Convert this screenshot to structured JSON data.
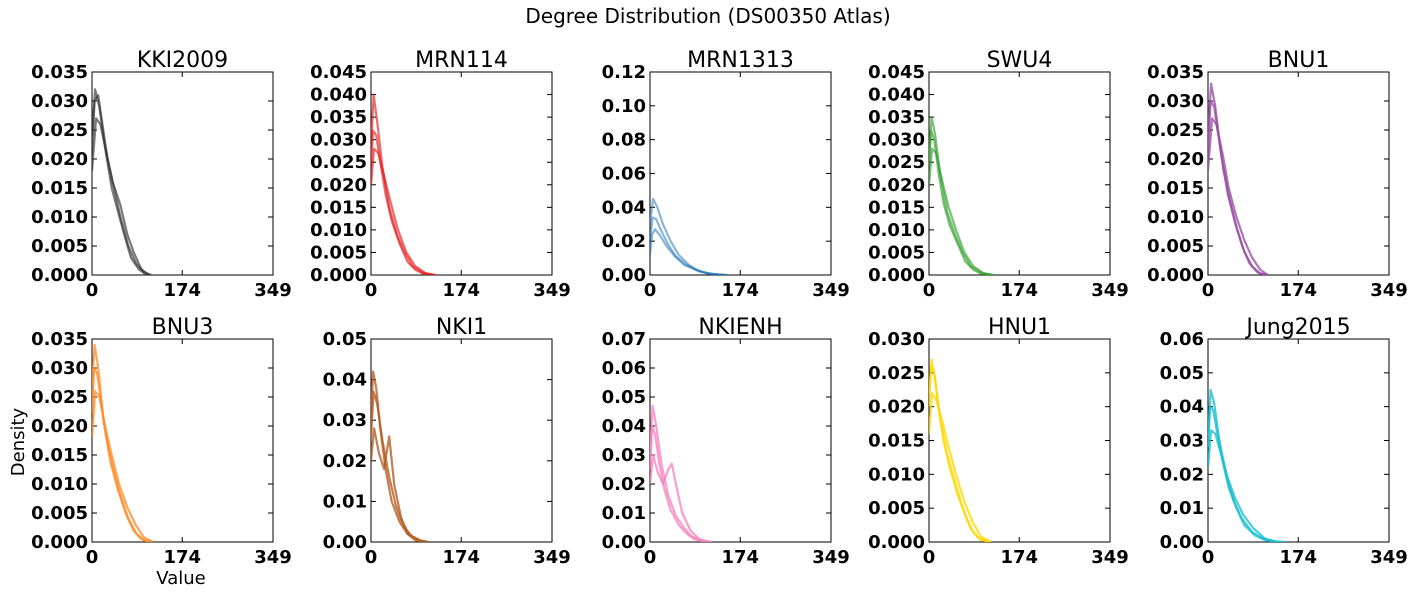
{
  "figure": {
    "title": "Degree Distribution (DS00350 Atlas)",
    "xlabel": "Value",
    "ylabel": "Density"
  },
  "chart_data": [
    {
      "type": "line",
      "title": "KKI2009",
      "color": "#333333",
      "opacity": 0.25,
      "xlim": [
        0,
        349
      ],
      "xticks": [
        "0",
        "174",
        "349"
      ],
      "ylim": [
        0,
        0.035
      ],
      "yticks": [
        "0.000",
        "0.005",
        "0.010",
        "0.015",
        "0.020",
        "0.025",
        "0.030",
        "0.035"
      ],
      "series": [
        {
          "x": [
            0,
            5,
            12,
            20,
            30,
            40,
            55,
            70,
            85,
            100,
            115
          ],
          "y": [
            0.021,
            0.03,
            0.031,
            0.026,
            0.02,
            0.016,
            0.01,
            0.005,
            0.002,
            0.0005,
            0
          ]
        },
        {
          "x": [
            0,
            6,
            14,
            25,
            38,
            50,
            62,
            75,
            90,
            105
          ],
          "y": [
            0.024,
            0.032,
            0.029,
            0.022,
            0.015,
            0.011,
            0.007,
            0.003,
            0.001,
            0
          ]
        },
        {
          "x": [
            0,
            8,
            16,
            28,
            40,
            55,
            68,
            80,
            95,
            110
          ],
          "y": [
            0.018,
            0.027,
            0.026,
            0.021,
            0.016,
            0.012,
            0.007,
            0.004,
            0.001,
            0
          ]
        }
      ]
    },
    {
      "type": "line",
      "title": "MRN114",
      "color": "#e41a1c",
      "opacity": 0.25,
      "xlim": [
        0,
        349
      ],
      "xticks": [
        "0",
        "174",
        "349"
      ],
      "ylim": [
        0,
        0.045
      ],
      "yticks": [
        "0.000",
        "0.005",
        "0.010",
        "0.015",
        "0.020",
        "0.025",
        "0.030",
        "0.035",
        "0.040",
        "0.045"
      ],
      "series": [
        {
          "x": [
            0,
            4,
            10,
            18,
            28,
            40,
            55,
            70,
            85,
            100,
            120
          ],
          "y": [
            0.024,
            0.032,
            0.031,
            0.025,
            0.018,
            0.012,
            0.007,
            0.003,
            0.0012,
            0.0003,
            0
          ]
        },
        {
          "x": [
            0,
            5,
            12,
            22,
            35,
            50,
            65,
            80,
            100,
            120
          ],
          "y": [
            0.028,
            0.04,
            0.034,
            0.024,
            0.015,
            0.009,
            0.005,
            0.002,
            0.0005,
            0
          ]
        },
        {
          "x": [
            0,
            6,
            14,
            25,
            38,
            52,
            68,
            85,
            105,
            125
          ],
          "y": [
            0.02,
            0.028,
            0.027,
            0.022,
            0.016,
            0.01,
            0.005,
            0.002,
            0.0004,
            0
          ]
        }
      ]
    },
    {
      "type": "line",
      "title": "MRN1313",
      "color": "#1f6fb4",
      "opacity": 0.2,
      "xlim": [
        0,
        349
      ],
      "xticks": [
        "0",
        "174",
        "349"
      ],
      "ylim": [
        0,
        0.12
      ],
      "yticks": [
        "0.00",
        "0.02",
        "0.04",
        "0.06",
        "0.08",
        "0.10",
        "0.12"
      ],
      "series": [
        {
          "x": [
            0,
            5,
            12,
            22,
            35,
            50,
            70,
            90,
            110,
            130,
            150
          ],
          "y": [
            0.02,
            0.034,
            0.033,
            0.026,
            0.018,
            0.011,
            0.006,
            0.003,
            0.001,
            0.0003,
            0
          ]
        },
        {
          "x": [
            0,
            6,
            14,
            25,
            40,
            55,
            75,
            95,
            120,
            145
          ],
          "y": [
            0.03,
            0.045,
            0.04,
            0.03,
            0.02,
            0.012,
            0.006,
            0.002,
            0.0006,
            0
          ]
        },
        {
          "x": [
            0,
            4,
            10,
            20,
            32,
            48,
            66,
            88,
            112,
            140
          ],
          "y": [
            0.012,
            0.024,
            0.027,
            0.023,
            0.017,
            0.011,
            0.006,
            0.003,
            0.001,
            0
          ]
        }
      ]
    },
    {
      "type": "line",
      "title": "SWU4",
      "color": "#33a02c",
      "opacity": 0.25,
      "xlim": [
        0,
        349
      ],
      "xticks": [
        "0",
        "174",
        "349"
      ],
      "ylim": [
        0,
        0.045
      ],
      "yticks": [
        "0.000",
        "0.005",
        "0.010",
        "0.015",
        "0.020",
        "0.025",
        "0.030",
        "0.035",
        "0.040",
        "0.045"
      ],
      "series": [
        {
          "x": [
            0,
            4,
            10,
            18,
            28,
            40,
            55,
            70,
            85,
            100,
            120
          ],
          "y": [
            0.024,
            0.032,
            0.03,
            0.023,
            0.016,
            0.011,
            0.007,
            0.003,
            0.0012,
            0.0003,
            0
          ]
        },
        {
          "x": [
            0,
            5,
            12,
            22,
            35,
            50,
            65,
            80,
            100,
            120
          ],
          "y": [
            0.026,
            0.035,
            0.031,
            0.022,
            0.014,
            0.009,
            0.005,
            0.002,
            0.0005,
            0
          ]
        },
        {
          "x": [
            0,
            6,
            14,
            25,
            38,
            52,
            68,
            85,
            105,
            125
          ],
          "y": [
            0.02,
            0.028,
            0.027,
            0.021,
            0.015,
            0.01,
            0.005,
            0.002,
            0.0004,
            0
          ]
        }
      ]
    },
    {
      "type": "line",
      "title": "BNU1",
      "color": "#984ea3",
      "opacity": 0.3,
      "xlim": [
        0,
        349
      ],
      "xticks": [
        "0",
        "174",
        "349"
      ],
      "ylim": [
        0,
        0.035
      ],
      "yticks": [
        "0.000",
        "0.005",
        "0.010",
        "0.015",
        "0.020",
        "0.025",
        "0.030",
        "0.035"
      ],
      "series": [
        {
          "x": [
            0,
            5,
            12,
            20,
            30,
            42,
            56,
            70,
            85,
            100,
            115
          ],
          "y": [
            0.021,
            0.03,
            0.029,
            0.024,
            0.018,
            0.013,
            0.008,
            0.004,
            0.0015,
            0.0003,
            0
          ]
        },
        {
          "x": [
            0,
            6,
            14,
            25,
            38,
            52,
            66,
            80,
            95,
            110
          ],
          "y": [
            0.024,
            0.033,
            0.029,
            0.021,
            0.014,
            0.009,
            0.005,
            0.002,
            0.0005,
            0
          ]
        },
        {
          "x": [
            0,
            8,
            16,
            28,
            40,
            55,
            70,
            85,
            100,
            115
          ],
          "y": [
            0.018,
            0.027,
            0.026,
            0.021,
            0.015,
            0.01,
            0.006,
            0.003,
            0.001,
            0
          ]
        }
      ]
    },
    {
      "type": "line",
      "title": "BNU3",
      "color": "#ff8c2a",
      "opacity": 0.3,
      "xlim": [
        0,
        349
      ],
      "xticks": [
        "0",
        "174",
        "349"
      ],
      "ylim": [
        0,
        0.035
      ],
      "yticks": [
        "0.000",
        "0.005",
        "0.010",
        "0.015",
        "0.020",
        "0.025",
        "0.030",
        "0.035"
      ],
      "series": [
        {
          "x": [
            0,
            4,
            10,
            18,
            28,
            40,
            55,
            70,
            85,
            100,
            115
          ],
          "y": [
            0.022,
            0.03,
            0.029,
            0.024,
            0.018,
            0.013,
            0.008,
            0.004,
            0.0015,
            0.0003,
            0
          ]
        },
        {
          "x": [
            0,
            5,
            12,
            22,
            35,
            50,
            65,
            80,
            95,
            110
          ],
          "y": [
            0.027,
            0.034,
            0.03,
            0.021,
            0.014,
            0.009,
            0.005,
            0.002,
            0.0005,
            0
          ]
        },
        {
          "x": [
            0,
            6,
            14,
            25,
            38,
            52,
            68,
            84,
            100,
            118
          ],
          "y": [
            0.018,
            0.026,
            0.025,
            0.02,
            0.015,
            0.01,
            0.006,
            0.003,
            0.0008,
            0
          ]
        }
      ]
    },
    {
      "type": "line",
      "title": "NKI1",
      "color": "#b35a1f",
      "opacity": 0.3,
      "xlim": [
        0,
        349
      ],
      "xticks": [
        "0",
        "174",
        "349"
      ],
      "ylim": [
        0,
        0.05
      ],
      "yticks": [
        "0.00",
        "0.01",
        "0.02",
        "0.03",
        "0.04",
        "0.05"
      ],
      "series": [
        {
          "x": [
            0,
            4,
            10,
            18,
            28,
            40,
            55,
            70,
            85,
            100
          ],
          "y": [
            0.03,
            0.042,
            0.038,
            0.028,
            0.018,
            0.01,
            0.005,
            0.002,
            0.0005,
            0
          ]
        },
        {
          "x": [
            0,
            5,
            12,
            22,
            35,
            48,
            62,
            78,
            95,
            110
          ],
          "y": [
            0.026,
            0.037,
            0.034,
            0.025,
            0.016,
            0.009,
            0.004,
            0.0015,
            0.0004,
            0
          ]
        },
        {
          "x": [
            0,
            6,
            15,
            25,
            35,
            45,
            58,
            72,
            90,
            110
          ],
          "y": [
            0.02,
            0.028,
            0.022,
            0.018,
            0.026,
            0.014,
            0.006,
            0.002,
            0.0005,
            0
          ]
        }
      ]
    },
    {
      "type": "line",
      "title": "NKIENH",
      "color": "#f781bf",
      "opacity": 0.3,
      "xlim": [
        0,
        349
      ],
      "xticks": [
        "0",
        "174",
        "349"
      ],
      "ylim": [
        0,
        0.07
      ],
      "yticks": [
        "0.00",
        "0.01",
        "0.02",
        "0.03",
        "0.04",
        "0.05",
        "0.06",
        "0.07"
      ],
      "series": [
        {
          "x": [
            0,
            4,
            10,
            18,
            28,
            40,
            55,
            70,
            85,
            100,
            120
          ],
          "y": [
            0.025,
            0.04,
            0.037,
            0.027,
            0.018,
            0.011,
            0.006,
            0.003,
            0.001,
            0.0003,
            0
          ]
        },
        {
          "x": [
            0,
            5,
            12,
            22,
            35,
            50,
            65,
            80,
            100,
            120
          ],
          "y": [
            0.03,
            0.047,
            0.04,
            0.027,
            0.016,
            0.009,
            0.005,
            0.002,
            0.0005,
            0
          ]
        },
        {
          "x": [
            0,
            6,
            15,
            25,
            35,
            42,
            50,
            62,
            78,
            95,
            115
          ],
          "y": [
            0.02,
            0.03,
            0.024,
            0.02,
            0.025,
            0.027,
            0.02,
            0.01,
            0.004,
            0.001,
            0
          ]
        }
      ]
    },
    {
      "type": "line",
      "title": "HNU1",
      "color": "#ffd700",
      "opacity": 0.3,
      "xlim": [
        0,
        349
      ],
      "xticks": [
        "0",
        "174",
        "349"
      ],
      "ylim": [
        0,
        0.03
      ],
      "yticks": [
        "0.000",
        "0.005",
        "0.010",
        "0.015",
        "0.020",
        "0.025",
        "0.030"
      ],
      "series": [
        {
          "x": [
            0,
            4,
            10,
            18,
            28,
            40,
            55,
            70,
            85,
            100,
            120
          ],
          "y": [
            0.02,
            0.026,
            0.025,
            0.02,
            0.015,
            0.011,
            0.007,
            0.004,
            0.0015,
            0.0003,
            0
          ]
        },
        {
          "x": [
            0,
            5,
            12,
            22,
            35,
            50,
            65,
            80,
            95,
            115
          ],
          "y": [
            0.022,
            0.027,
            0.024,
            0.018,
            0.013,
            0.009,
            0.005,
            0.002,
            0.0006,
            0
          ]
        },
        {
          "x": [
            0,
            6,
            14,
            25,
            38,
            52,
            68,
            84,
            100,
            120
          ],
          "y": [
            0.016,
            0.022,
            0.021,
            0.018,
            0.014,
            0.01,
            0.006,
            0.003,
            0.0008,
            0
          ]
        }
      ]
    },
    {
      "type": "line",
      "title": "Jung2015",
      "color": "#17becf",
      "opacity": 0.3,
      "xlim": [
        0,
        349
      ],
      "xticks": [
        "0",
        "174",
        "349"
      ],
      "ylim": [
        0,
        0.06
      ],
      "yticks": [
        "0.00",
        "0.01",
        "0.02",
        "0.03",
        "0.04",
        "0.05",
        "0.06"
      ],
      "series": [
        {
          "x": [
            0,
            4,
            10,
            18,
            28,
            40,
            55,
            70,
            90,
            110,
            130,
            150
          ],
          "y": [
            0.028,
            0.04,
            0.039,
            0.032,
            0.024,
            0.016,
            0.01,
            0.005,
            0.002,
            0.0006,
            0.0001,
            0
          ]
        },
        {
          "x": [
            0,
            5,
            12,
            22,
            35,
            50,
            65,
            85,
            105,
            125,
            145
          ],
          "y": [
            0.03,
            0.045,
            0.041,
            0.03,
            0.02,
            0.012,
            0.007,
            0.003,
            0.001,
            0.0002,
            0
          ]
        },
        {
          "x": [
            0,
            6,
            14,
            25,
            38,
            52,
            68,
            88,
            110,
            135
          ],
          "y": [
            0.022,
            0.033,
            0.032,
            0.026,
            0.019,
            0.013,
            0.008,
            0.004,
            0.001,
            0
          ]
        }
      ]
    }
  ]
}
